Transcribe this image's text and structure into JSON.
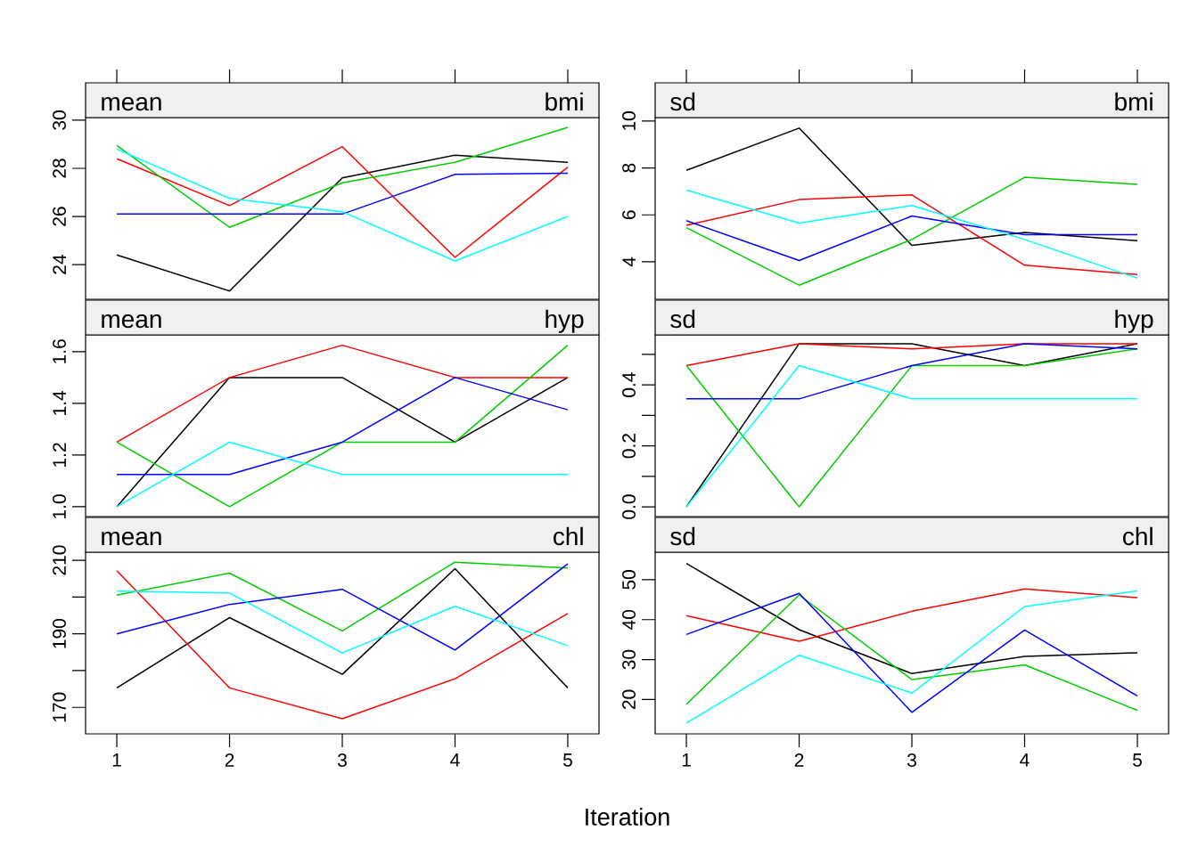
{
  "chart_data": [
    {
      "type": "line",
      "title": "mean",
      "subtitle": "bmi",
      "x": [
        1,
        2,
        3,
        4,
        5
      ],
      "xlim": [
        0.723,
        5.277
      ],
      "xticks": [
        1,
        2,
        3,
        4,
        5
      ],
      "ylim": [
        22.56,
        30.11
      ],
      "yticks": [
        24,
        26,
        28,
        30
      ],
      "tick_labels": "y",
      "series": [
        {
          "color": "#000000",
          "values": [
            24.4,
            22.9,
            27.6,
            28.55,
            28.25
          ]
        },
        {
          "color": "#ff0000",
          "values": [
            28.4,
            26.45,
            28.9,
            24.3,
            28.05
          ]
        },
        {
          "color": "#00cd00",
          "values": [
            28.95,
            25.55,
            27.4,
            28.25,
            29.7
          ]
        },
        {
          "color": "#0000ff",
          "values": [
            26.1,
            26.1,
            26.1,
            27.75,
            27.8
          ]
        },
        {
          "color": "#00ffff",
          "values": [
            28.8,
            26.75,
            26.2,
            24.15,
            26.0
          ]
        }
      ]
    },
    {
      "type": "line",
      "title": "sd",
      "subtitle": "bmi",
      "x": [
        1,
        2,
        3,
        4,
        5
      ],
      "xlim": [
        0.723,
        5.277
      ],
      "xticks": [
        1,
        2,
        3,
        4,
        5
      ],
      "ylim": [
        2.4,
        10.15
      ],
      "yticks": [
        4,
        6,
        8,
        10
      ],
      "tick_labels": "y",
      "series": [
        {
          "color": "#000000",
          "values": [
            7.9,
            9.7,
            4.7,
            5.25,
            4.9
          ]
        },
        {
          "color": "#ff0000",
          "values": [
            5.55,
            6.65,
            6.85,
            3.85,
            3.45
          ]
        },
        {
          "color": "#00cd00",
          "values": [
            5.45,
            3.0,
            4.95,
            7.6,
            7.3
          ]
        },
        {
          "color": "#0000ff",
          "values": [
            5.75,
            4.05,
            5.95,
            5.15,
            5.15
          ]
        },
        {
          "color": "#00ffff",
          "values": [
            7.05,
            5.65,
            6.4,
            4.95,
            3.3
          ]
        }
      ]
    },
    {
      "type": "line",
      "title": "mean",
      "subtitle": "hyp",
      "x": [
        1,
        2,
        3,
        4,
        5
      ],
      "xlim": [
        0.723,
        5.277
      ],
      "xticks": [
        1,
        2,
        3,
        4,
        5
      ],
      "ylim": [
        0.962,
        1.665
      ],
      "yticks": [
        {
          "value": 1.0,
          "label": "1.0"
        },
        1.2,
        1.4,
        1.6
      ],
      "tick_labels": "y",
      "series": [
        {
          "color": "#000000",
          "values": [
            1.0,
            1.5,
            1.5,
            1.25,
            1.5
          ]
        },
        {
          "color": "#ff0000",
          "values": [
            1.25,
            1.5,
            1.625,
            1.5,
            1.5
          ]
        },
        {
          "color": "#00cd00",
          "values": [
            1.25,
            1.0,
            1.25,
            1.25,
            1.625
          ]
        },
        {
          "color": "#0000ff",
          "values": [
            1.125,
            1.125,
            1.25,
            1.5,
            1.375
          ]
        },
        {
          "color": "#00ffff",
          "values": [
            1.0,
            1.25,
            1.125,
            1.125,
            1.125
          ]
        }
      ]
    },
    {
      "type": "line",
      "title": "sd",
      "subtitle": "hyp",
      "x": [
        1,
        2,
        3,
        4,
        5
      ],
      "xlim": [
        0.723,
        5.277
      ],
      "xticks": [
        1,
        2,
        3,
        4,
        5
      ],
      "ylim": [
        -0.032,
        0.564
      ],
      "yticks": [
        {
          "value": 0.0,
          "label": "0.0"
        },
        {
          "value": 0.1,
          "label": null
        },
        0.2,
        {
          "value": 0.3,
          "label": null
        },
        0.4,
        {
          "value": 0.5,
          "label": null
        }
      ],
      "tick_labels": "y",
      "series": [
        {
          "color": "#000000",
          "values": [
            0.0,
            0.535,
            0.535,
            0.463,
            0.535
          ]
        },
        {
          "color": "#ff0000",
          "values": [
            0.463,
            0.535,
            0.518,
            0.535,
            0.535
          ]
        },
        {
          "color": "#00cd00",
          "values": [
            0.463,
            0.0,
            0.463,
            0.463,
            0.518
          ]
        },
        {
          "color": "#0000ff",
          "values": [
            0.354,
            0.354,
            0.463,
            0.535,
            0.518
          ]
        },
        {
          "color": "#00ffff",
          "values": [
            0.0,
            0.463,
            0.354,
            0.354,
            0.354
          ]
        }
      ]
    },
    {
      "type": "line",
      "title": "mean",
      "subtitle": "chl",
      "xlabel": "Iteration",
      "x": [
        1,
        2,
        3,
        4,
        5
      ],
      "xlim": [
        0.723,
        5.277
      ],
      "xticks": [
        1,
        2,
        3,
        4,
        5
      ],
      "ylim": [
        162.8,
        212.2
      ],
      "yticks": [
        170,
        {
          "value": 180,
          "label": null
        },
        190,
        {
          "value": 200,
          "label": null
        },
        210
      ],
      "series": [
        {
          "color": "#000000",
          "values": [
            175.3,
            194.4,
            179.0,
            207.7,
            175.3
          ]
        },
        {
          "color": "#ff0000",
          "values": [
            207.2,
            175.3,
            166.9,
            177.8,
            195.5
          ]
        },
        {
          "color": "#00cd00",
          "values": [
            200.5,
            206.5,
            190.8,
            209.5,
            207.9
          ]
        },
        {
          "color": "#0000ff",
          "values": [
            190.0,
            198.0,
            202.1,
            185.6,
            209.0
          ]
        },
        {
          "color": "#00ffff",
          "values": [
            201.6,
            201.1,
            184.8,
            197.5,
            186.8
          ]
        }
      ]
    },
    {
      "type": "line",
      "title": "sd",
      "subtitle": "chl",
      "x": [
        1,
        2,
        3,
        4,
        5
      ],
      "xlim": [
        0.723,
        5.277
      ],
      "xticks": [
        1,
        2,
        3,
        4,
        5
      ],
      "ylim": [
        11.4,
        56.9
      ],
      "yticks": [
        20,
        30,
        40,
        50
      ],
      "series": [
        {
          "color": "#000000",
          "values": [
            54.1,
            37.5,
            26.5,
            30.8,
            31.7
          ]
        },
        {
          "color": "#ff0000",
          "values": [
            41.0,
            34.6,
            42.1,
            47.7,
            45.5
          ]
        },
        {
          "color": "#00cd00",
          "values": [
            18.8,
            46.2,
            25.0,
            28.7,
            17.3
          ]
        },
        {
          "color": "#0000ff",
          "values": [
            36.3,
            46.6,
            16.8,
            37.4,
            20.9
          ]
        },
        {
          "color": "#00ffff",
          "values": [
            14.1,
            31.1,
            21.6,
            43.3,
            47.2
          ]
        }
      ]
    }
  ]
}
